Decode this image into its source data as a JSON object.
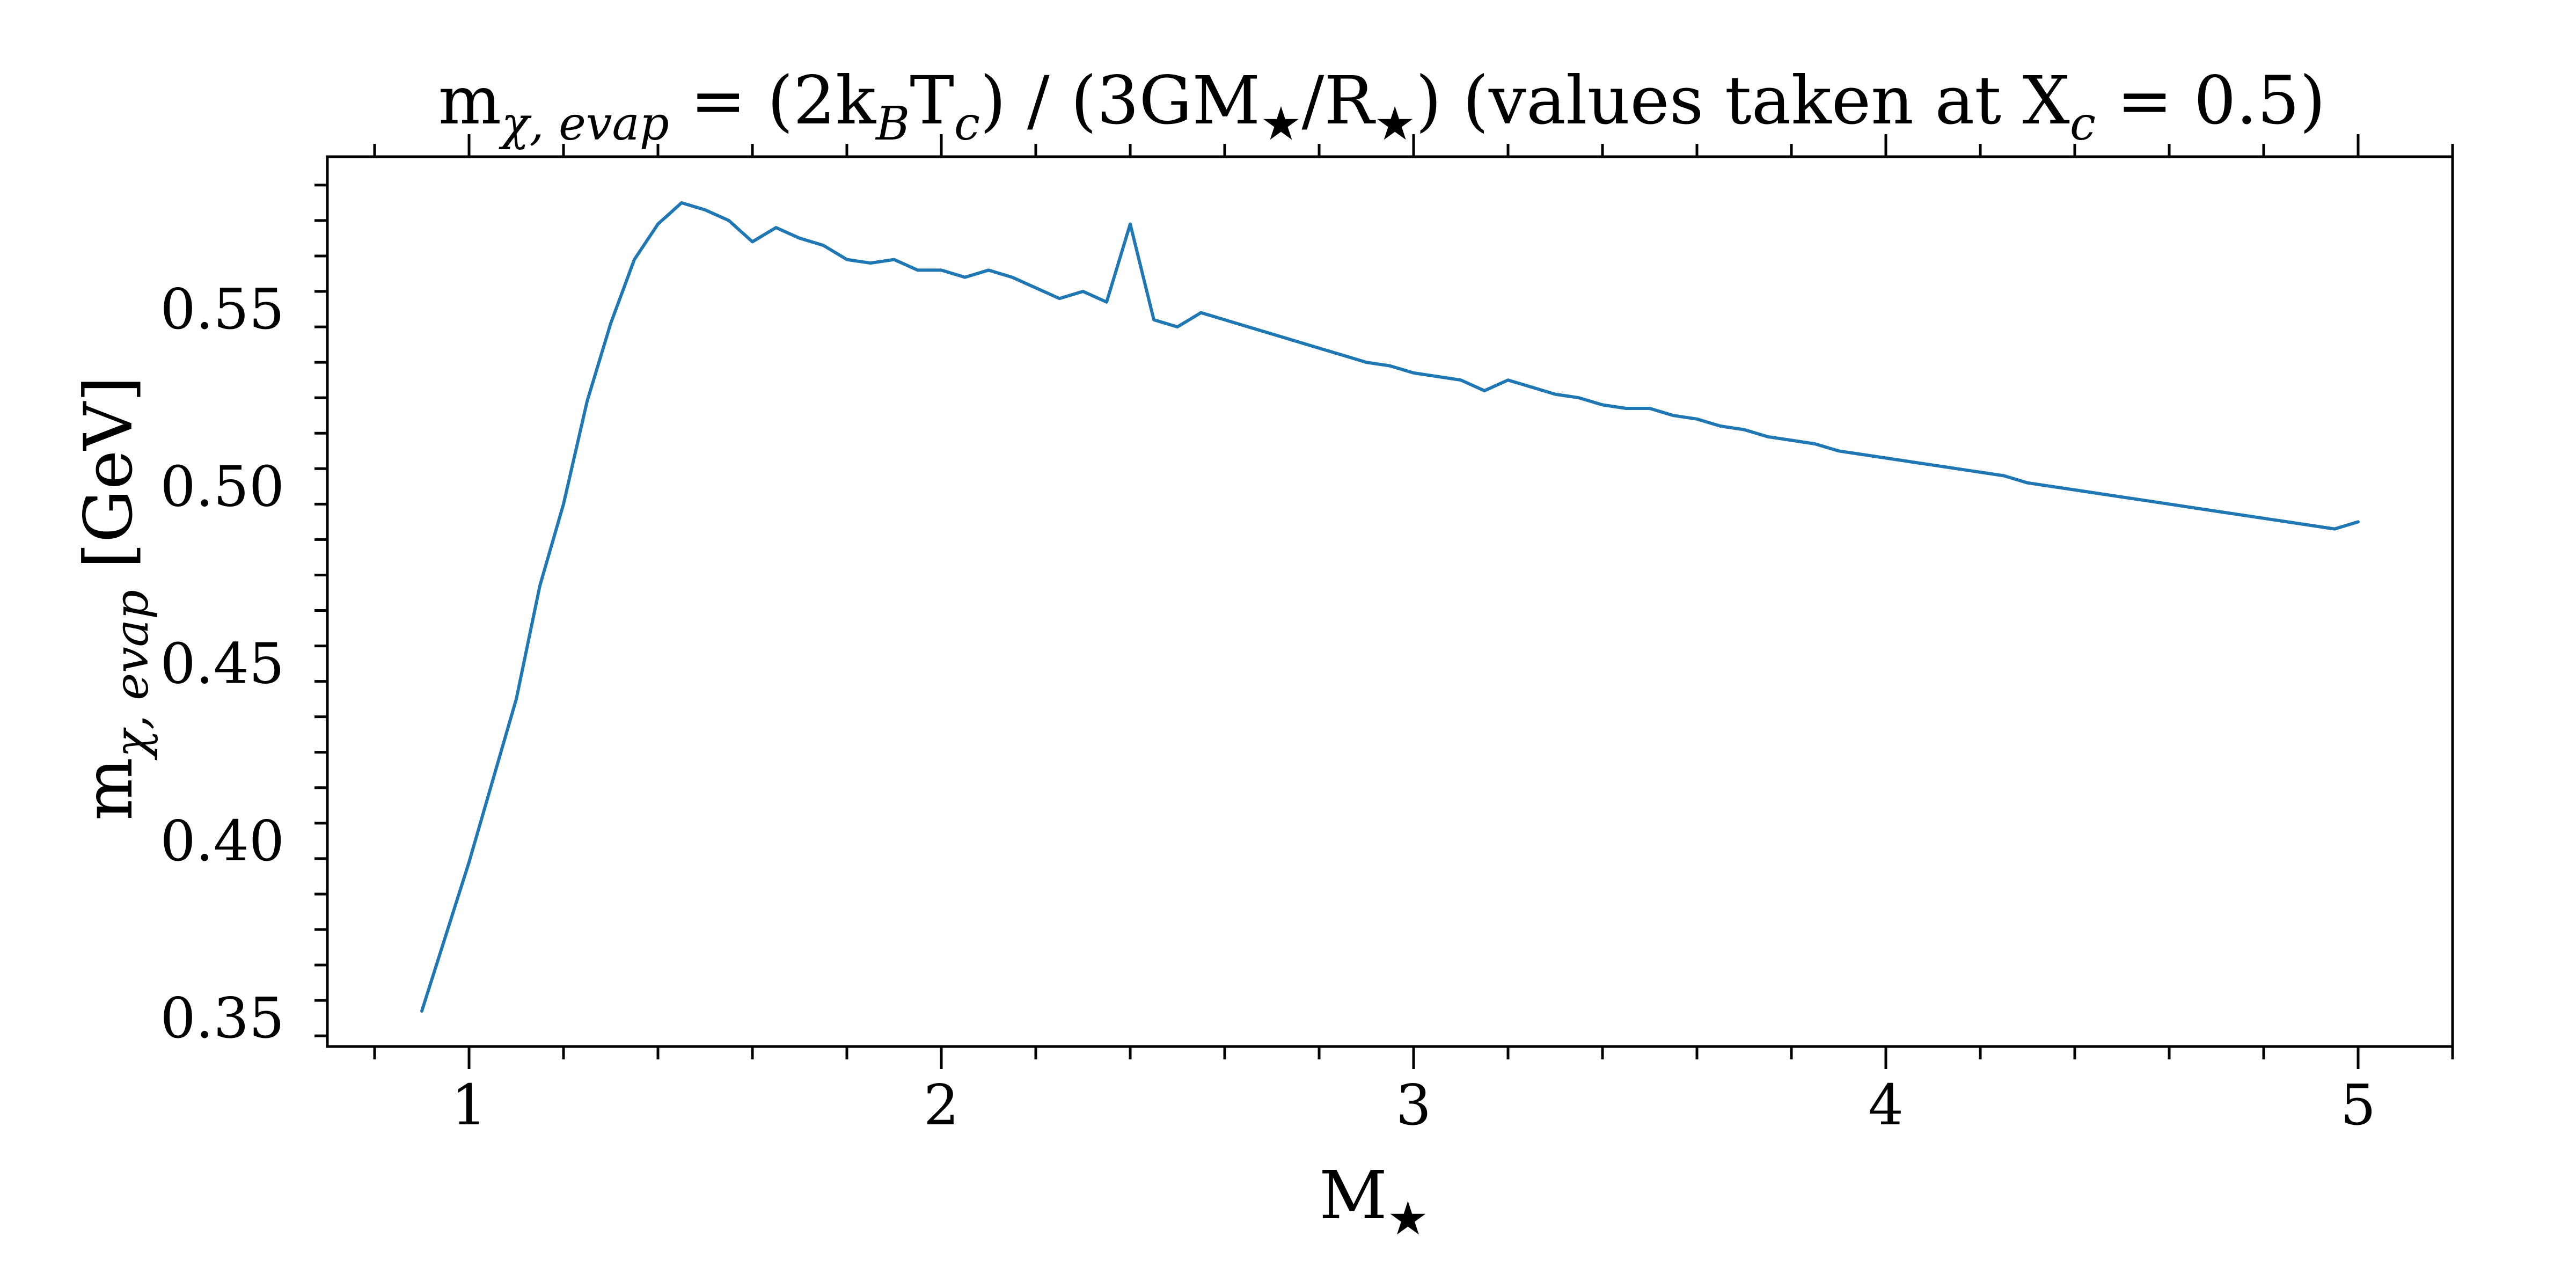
{
  "chart_data": {
    "type": "line",
    "title": {
      "main": "m",
      "main_sub": "χ, evap",
      "part1": " = (2k",
      "part1_sub": "B",
      "part2": "T",
      "part2_sub": "c",
      "part3": ") / (3GM",
      "part3_sub": "★",
      "part4": "/R",
      "part4_sub": "★",
      "part5": ") (values taken at X",
      "part5_sub": "c",
      "part6": " = 0.5)"
    },
    "xlabel": {
      "main": "M",
      "sub": "★"
    },
    "ylabel": {
      "main": "m",
      "sub": "χ, evap",
      "unit": " [GeV]"
    },
    "xlim": [
      0.7,
      5.2
    ],
    "ylim": [
      0.342,
      0.593
    ],
    "x_ticks": [
      1,
      2,
      3,
      4,
      5
    ],
    "x_tick_labels": [
      "1",
      "2",
      "3",
      "4",
      "5"
    ],
    "y_ticks": [
      0.35,
      0.4,
      0.45,
      0.5,
      0.55
    ],
    "y_tick_labels": [
      "0.35",
      "0.40",
      "0.45",
      "0.50",
      "0.55"
    ],
    "line_color": "#1f77b4",
    "series": [
      {
        "x": [
          0.9,
          0.95,
          1.0,
          1.05,
          1.1,
          1.15,
          1.2,
          1.25,
          1.3,
          1.35,
          1.4,
          1.45,
          1.5,
          1.55,
          1.6,
          1.65,
          1.7,
          1.75,
          1.8,
          1.85,
          1.9,
          1.95,
          2.0,
          2.05,
          2.1,
          2.15,
          2.2,
          2.25,
          2.3,
          2.35,
          2.4,
          2.45,
          2.5,
          2.55,
          2.6,
          2.65,
          2.7,
          2.75,
          2.8,
          2.85,
          2.9,
          2.95,
          3.0,
          3.05,
          3.1,
          3.15,
          3.2,
          3.25,
          3.3,
          3.35,
          3.4,
          3.45,
          3.5,
          3.55,
          3.6,
          3.65,
          3.7,
          3.75,
          3.8,
          3.85,
          3.9,
          3.95,
          4.0,
          4.05,
          4.1,
          4.15,
          4.2,
          4.25,
          4.3,
          4.35,
          4.4,
          4.45,
          4.5,
          4.55,
          4.6,
          4.65,
          4.7,
          4.75,
          4.8,
          4.85,
          4.9,
          4.95,
          5.0
        ],
        "y": [
          0.352,
          0.373,
          0.394,
          0.417,
          0.44,
          0.472,
          0.495,
          0.524,
          0.546,
          0.564,
          0.574,
          0.58,
          0.578,
          0.575,
          0.569,
          0.573,
          0.57,
          0.568,
          0.564,
          0.563,
          0.564,
          0.561,
          0.561,
          0.559,
          0.561,
          0.559,
          0.556,
          0.553,
          0.555,
          0.552,
          0.574,
          0.547,
          0.545,
          0.549,
          0.547,
          0.545,
          0.543,
          0.541,
          0.539,
          0.537,
          0.535,
          0.534,
          0.532,
          0.531,
          0.53,
          0.527,
          0.53,
          0.528,
          0.526,
          0.525,
          0.523,
          0.522,
          0.522,
          0.52,
          0.519,
          0.517,
          0.516,
          0.514,
          0.513,
          0.512,
          0.51,
          0.509,
          0.508,
          0.507,
          0.506,
          0.505,
          0.504,
          0.503,
          0.501,
          0.5,
          0.499,
          0.498,
          0.497,
          0.496,
          0.495,
          0.494,
          0.493,
          0.492,
          0.491,
          0.49,
          0.489,
          0.488,
          0.49
        ]
      }
    ]
  }
}
